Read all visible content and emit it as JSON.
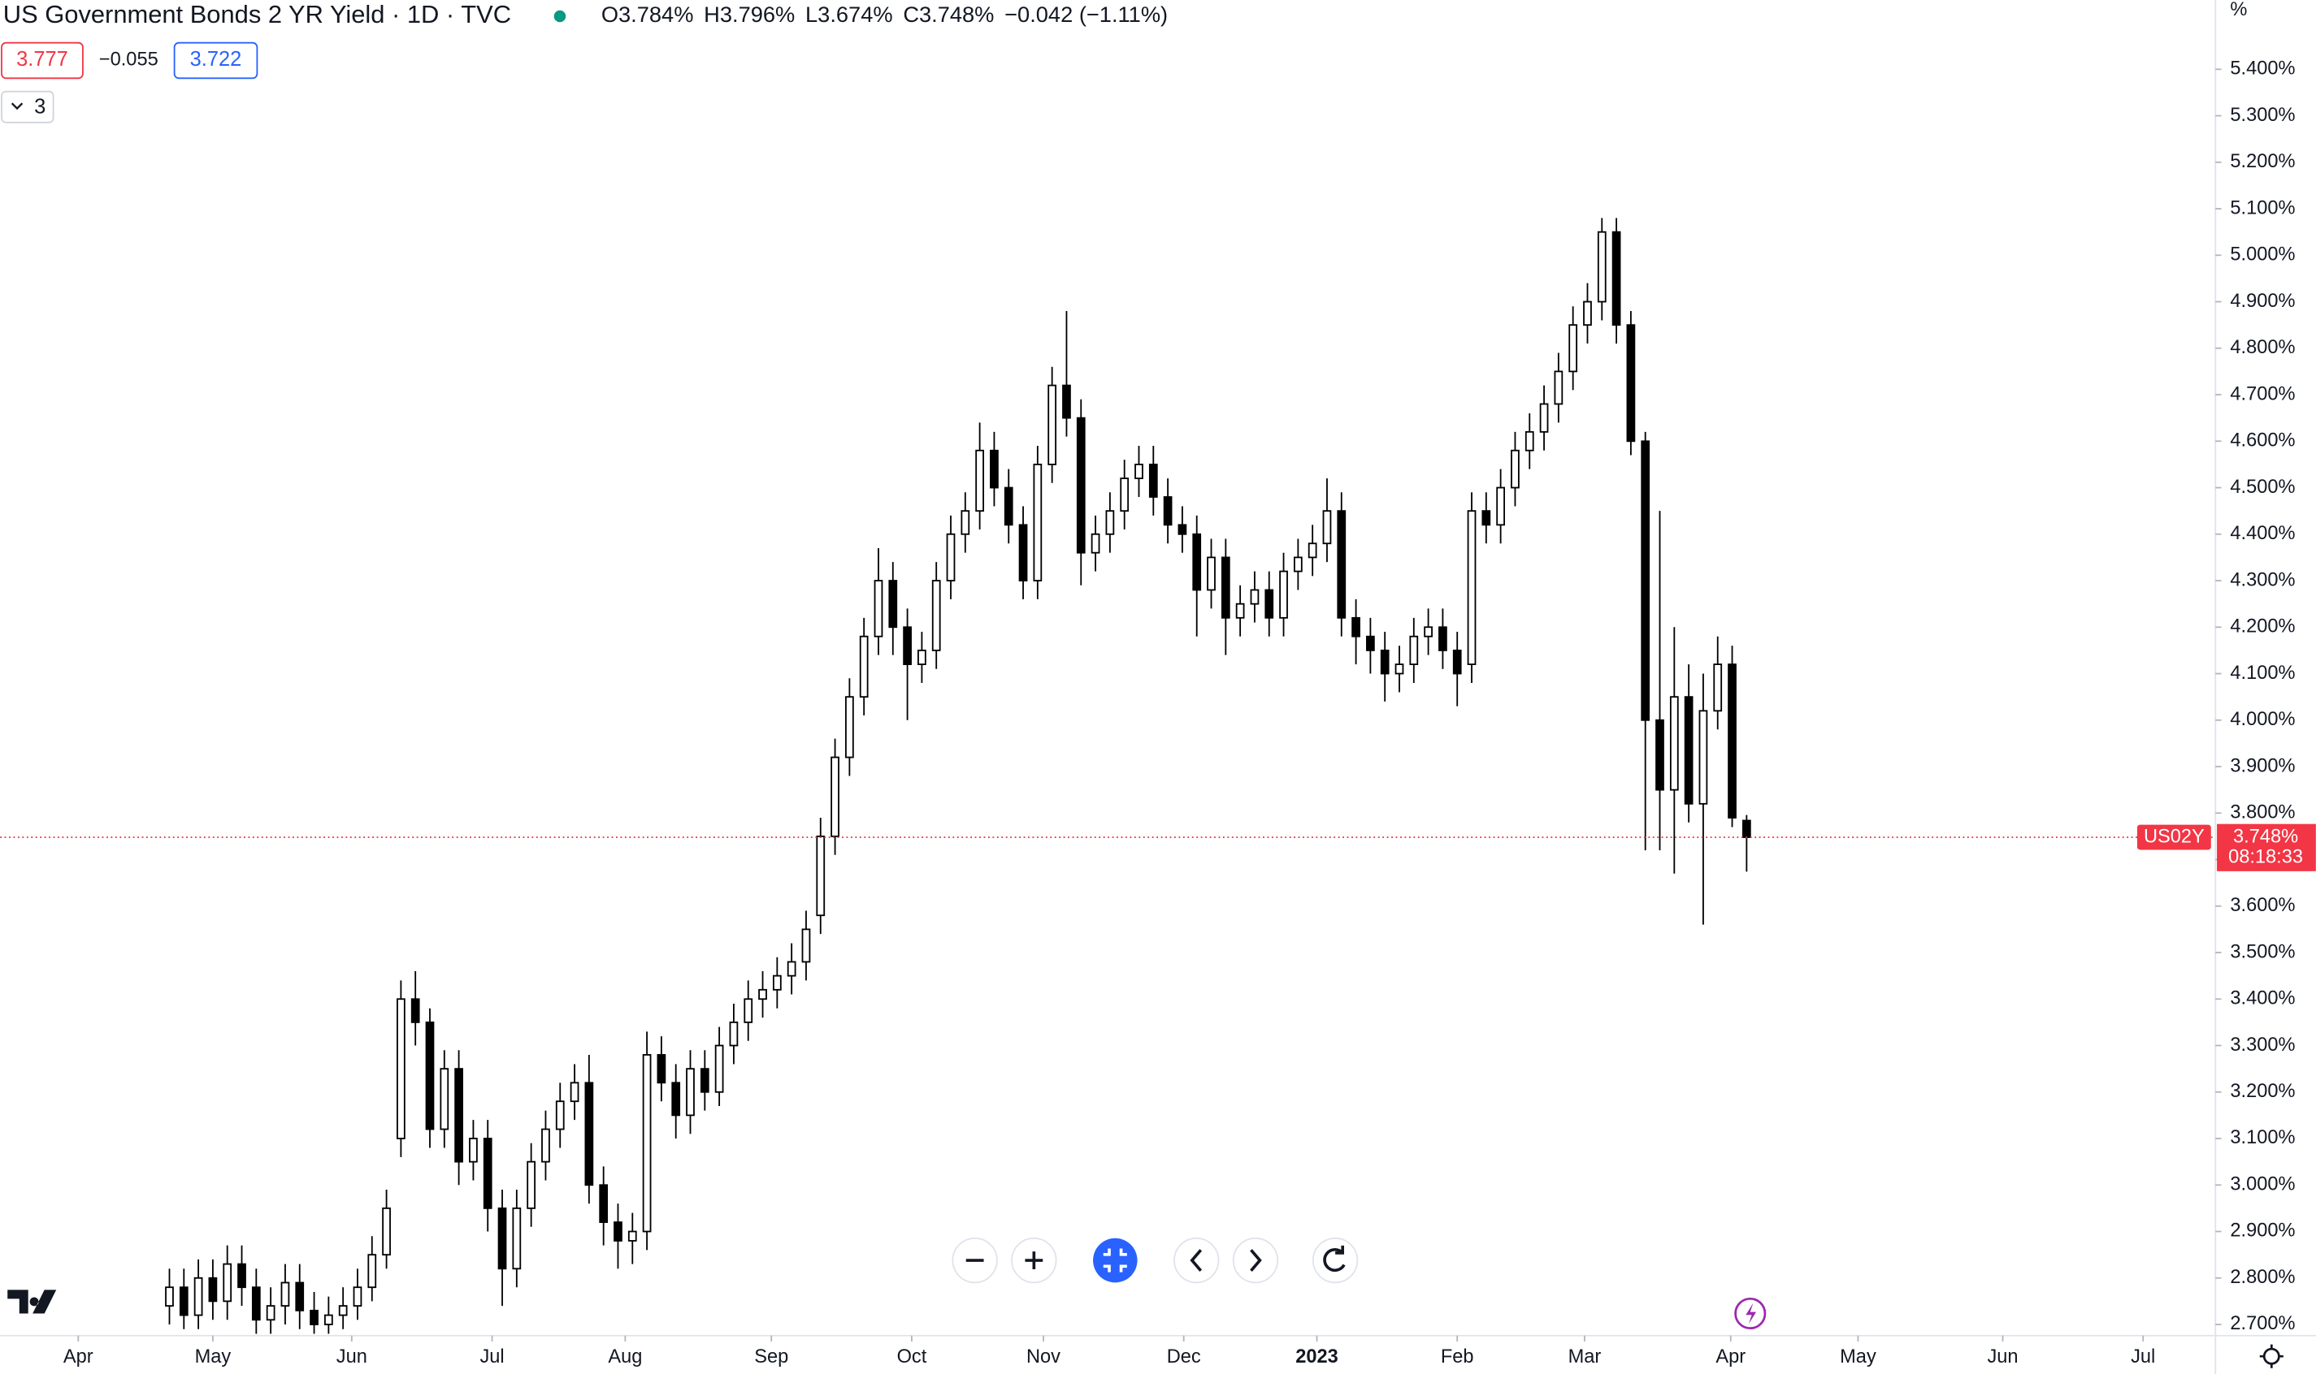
{
  "chart_data": {
    "type": "candlestick",
    "title": "US Government Bonds 2 YR Yield · 1D · TVC",
    "ohlc_text": [
      "O3.784%",
      "H3.796%",
      "L3.674%",
      "C3.748%",
      "−0.042 (−1.11%)"
    ],
    "sell": "3.777",
    "spread": "−0.055",
    "buy": "3.722",
    "indicators": "3",
    "symbol": "US02Y",
    "last_label": "3.748%",
    "countdown": "08:18:33",
    "unit": "%",
    "up_color": "#ffffff",
    "down_color": "#000000",
    "border_color": "#000000",
    "price_line_color": "#f23645",
    "open": [
      2.74,
      2.78,
      2.72,
      2.8,
      2.75,
      2.83,
      2.78,
      2.71,
      2.74,
      2.79,
      2.73,
      2.7,
      2.72,
      2.74,
      2.78,
      2.85,
      3.1,
      3.4,
      3.35,
      3.12,
      3.25,
      3.05,
      3.1,
      2.95,
      2.82,
      2.95,
      3.05,
      3.12,
      3.18,
      3.22,
      3.0,
      2.92,
      2.88,
      2.9,
      3.28,
      3.22,
      3.15,
      3.25,
      3.2,
      3.3,
      3.35,
      3.4,
      3.42,
      3.45,
      3.48,
      3.58,
      3.75,
      3.92,
      4.05,
      4.18,
      4.3,
      4.2,
      4.12,
      4.15,
      4.3,
      4.4,
      4.45,
      4.58,
      4.5,
      4.42,
      4.3,
      4.55,
      4.72,
      4.65,
      4.36,
      4.4,
      4.45,
      4.52,
      4.55,
      4.48,
      4.42,
      4.4,
      4.28,
      4.35,
      4.22,
      4.25,
      4.28,
      4.22,
      4.32,
      4.35,
      4.38,
      4.45,
      4.22,
      4.18,
      4.15,
      4.1,
      4.12,
      4.18,
      4.2,
      4.15,
      4.12,
      4.45,
      4.42,
      4.5,
      4.58,
      4.62,
      4.68,
      4.75,
      4.85,
      4.9,
      5.05,
      4.85,
      4.6,
      4.0,
      3.85,
      4.05,
      3.82,
      4.02,
      4.12,
      3.784
    ],
    "high": [
      2.82,
      2.82,
      2.84,
      2.84,
      2.87,
      2.87,
      2.82,
      2.78,
      2.83,
      2.83,
      2.77,
      2.76,
      2.78,
      2.82,
      2.89,
      2.99,
      3.44,
      3.46,
      3.38,
      3.29,
      3.29,
      3.14,
      3.14,
      2.99,
      2.99,
      3.09,
      3.16,
      3.22,
      3.26,
      3.28,
      3.04,
      2.96,
      2.94,
      3.33,
      3.32,
      3.26,
      3.29,
      3.29,
      3.34,
      3.39,
      3.44,
      3.46,
      3.49,
      3.52,
      3.59,
      3.79,
      3.96,
      4.09,
      4.22,
      4.37,
      4.34,
      4.24,
      4.19,
      4.34,
      4.44,
      4.49,
      4.64,
      4.62,
      4.54,
      4.46,
      4.59,
      4.76,
      4.88,
      4.69,
      4.44,
      4.49,
      4.56,
      4.59,
      4.59,
      4.52,
      4.46,
      4.44,
      4.39,
      4.39,
      4.29,
      4.32,
      4.32,
      4.36,
      4.39,
      4.42,
      4.52,
      4.49,
      4.26,
      4.22,
      4.19,
      4.16,
      4.22,
      4.24,
      4.24,
      4.19,
      4.49,
      4.49,
      4.54,
      4.62,
      4.66,
      4.72,
      4.79,
      4.89,
      4.94,
      5.08,
      5.08,
      4.88,
      4.62,
      4.45,
      4.2,
      4.12,
      4.1,
      4.18,
      4.16,
      3.796
    ],
    "low": [
      2.7,
      2.69,
      2.69,
      2.71,
      2.71,
      2.74,
      2.68,
      2.68,
      2.7,
      2.69,
      2.68,
      2.68,
      2.69,
      2.71,
      2.75,
      2.82,
      3.06,
      3.3,
      3.08,
      3.08,
      3.0,
      3.01,
      2.9,
      2.74,
      2.78,
      2.91,
      3.01,
      3.08,
      3.14,
      2.96,
      2.87,
      2.82,
      2.83,
      2.86,
      3.18,
      3.1,
      3.11,
      3.16,
      3.17,
      3.26,
      3.31,
      3.36,
      3.38,
      3.41,
      3.44,
      3.54,
      3.71,
      3.88,
      4.01,
      4.14,
      4.14,
      4.0,
      4.08,
      4.11,
      4.26,
      4.36,
      4.41,
      4.46,
      4.38,
      4.26,
      4.26,
      4.51,
      4.61,
      4.29,
      4.32,
      4.36,
      4.41,
      4.48,
      4.44,
      4.38,
      4.36,
      4.18,
      4.24,
      4.14,
      4.18,
      4.21,
      4.18,
      4.18,
      4.28,
      4.31,
      4.34,
      4.18,
      4.12,
      4.1,
      4.04,
      4.06,
      4.08,
      4.14,
      4.11,
      4.03,
      4.08,
      4.38,
      4.38,
      4.46,
      4.54,
      4.58,
      4.64,
      4.71,
      4.81,
      4.86,
      4.81,
      4.57,
      3.72,
      3.72,
      3.67,
      3.78,
      3.56,
      3.98,
      3.77,
      3.674
    ],
    "close": [
      2.78,
      2.72,
      2.8,
      2.75,
      2.83,
      2.78,
      2.71,
      2.74,
      2.79,
      2.73,
      2.7,
      2.72,
      2.74,
      2.78,
      2.85,
      2.95,
      3.4,
      3.35,
      3.12,
      3.25,
      3.05,
      3.1,
      2.95,
      2.82,
      2.95,
      3.05,
      3.12,
      3.18,
      3.22,
      3.0,
      2.92,
      2.88,
      2.9,
      3.28,
      3.22,
      3.15,
      3.25,
      3.2,
      3.3,
      3.35,
      3.4,
      3.42,
      3.45,
      3.48,
      3.55,
      3.75,
      3.92,
      4.05,
      4.18,
      4.3,
      4.2,
      4.12,
      4.15,
      4.3,
      4.4,
      4.45,
      4.58,
      4.5,
      4.42,
      4.3,
      4.55,
      4.72,
      4.65,
      4.36,
      4.4,
      4.45,
      4.52,
      4.55,
      4.48,
      4.42,
      4.4,
      4.28,
      4.35,
      4.22,
      4.25,
      4.28,
      4.22,
      4.32,
      4.35,
      4.38,
      4.45,
      4.22,
      4.18,
      4.15,
      4.1,
      4.12,
      4.18,
      4.2,
      4.15,
      4.1,
      4.45,
      4.42,
      4.5,
      4.58,
      4.62,
      4.68,
      4.75,
      4.85,
      4.9,
      5.05,
      4.85,
      4.6,
      4.0,
      3.85,
      4.05,
      3.82,
      4.02,
      4.12,
      3.79,
      3.748
    ],
    "xlim": [
      -11.7,
      141.4
    ],
    "xticks": [
      {
        "value": -6.3,
        "label": "Apr"
      },
      {
        "value": 3.0,
        "label": "May"
      },
      {
        "value": 12.6,
        "label": "Jun"
      },
      {
        "value": 22.3,
        "label": "Jul"
      },
      {
        "value": 31.5,
        "label": "Aug"
      },
      {
        "value": 41.6,
        "label": "Sep"
      },
      {
        "value": 51.3,
        "label": "Oct"
      },
      {
        "value": 60.4,
        "label": "Nov"
      },
      {
        "value": 70.1,
        "label": "Dec"
      },
      {
        "value": 79.3,
        "label": "2023"
      },
      {
        "value": 89.0,
        "label": "Feb"
      },
      {
        "value": 97.8,
        "label": "Mar"
      },
      {
        "value": 107.9,
        "label": "Apr"
      },
      {
        "value": 116.7,
        "label": "May"
      },
      {
        "value": 126.7,
        "label": "Jun"
      },
      {
        "value": 136.4,
        "label": "Jul"
      }
    ],
    "ylim": [
      2.676,
      5.549
    ],
    "yticks": [
      {
        "value": 2.7,
        "label": "2.700%"
      },
      {
        "value": 2.8,
        "label": "2.800%"
      },
      {
        "value": 2.9,
        "label": "2.900%"
      },
      {
        "value": 3.0,
        "label": "3.000%"
      },
      {
        "value": 3.1,
        "label": "3.100%"
      },
      {
        "value": 3.2,
        "label": "3.200%"
      },
      {
        "value": 3.3,
        "label": "3.300%"
      },
      {
        "value": 3.4,
        "label": "3.400%"
      },
      {
        "value": 3.5,
        "label": "3.500%"
      },
      {
        "value": 3.6,
        "label": "3.600%"
      },
      {
        "value": 3.7,
        "label": "3.700%"
      },
      {
        "value": 3.8,
        "label": "3.800%"
      },
      {
        "value": 3.9,
        "label": "3.900%"
      },
      {
        "value": 4.0,
        "label": "4.000%"
      },
      {
        "value": 4.1,
        "label": "4.100%"
      },
      {
        "value": 4.2,
        "label": "4.200%"
      },
      {
        "value": 4.3,
        "label": "4.300%"
      },
      {
        "value": 4.4,
        "label": "4.400%"
      },
      {
        "value": 4.5,
        "label": "4.500%"
      },
      {
        "value": 4.6,
        "label": "4.600%"
      },
      {
        "value": 4.7,
        "label": "4.700%"
      },
      {
        "value": 4.8,
        "label": "4.800%"
      },
      {
        "value": 4.9,
        "label": "4.900%"
      },
      {
        "value": 5.0,
        "label": "5.000%"
      },
      {
        "value": 5.1,
        "label": "5.100%"
      },
      {
        "value": 5.2,
        "label": "5.200%"
      },
      {
        "value": 5.3,
        "label": "5.300%"
      },
      {
        "value": 5.4,
        "label": "5.400%"
      }
    ]
  }
}
